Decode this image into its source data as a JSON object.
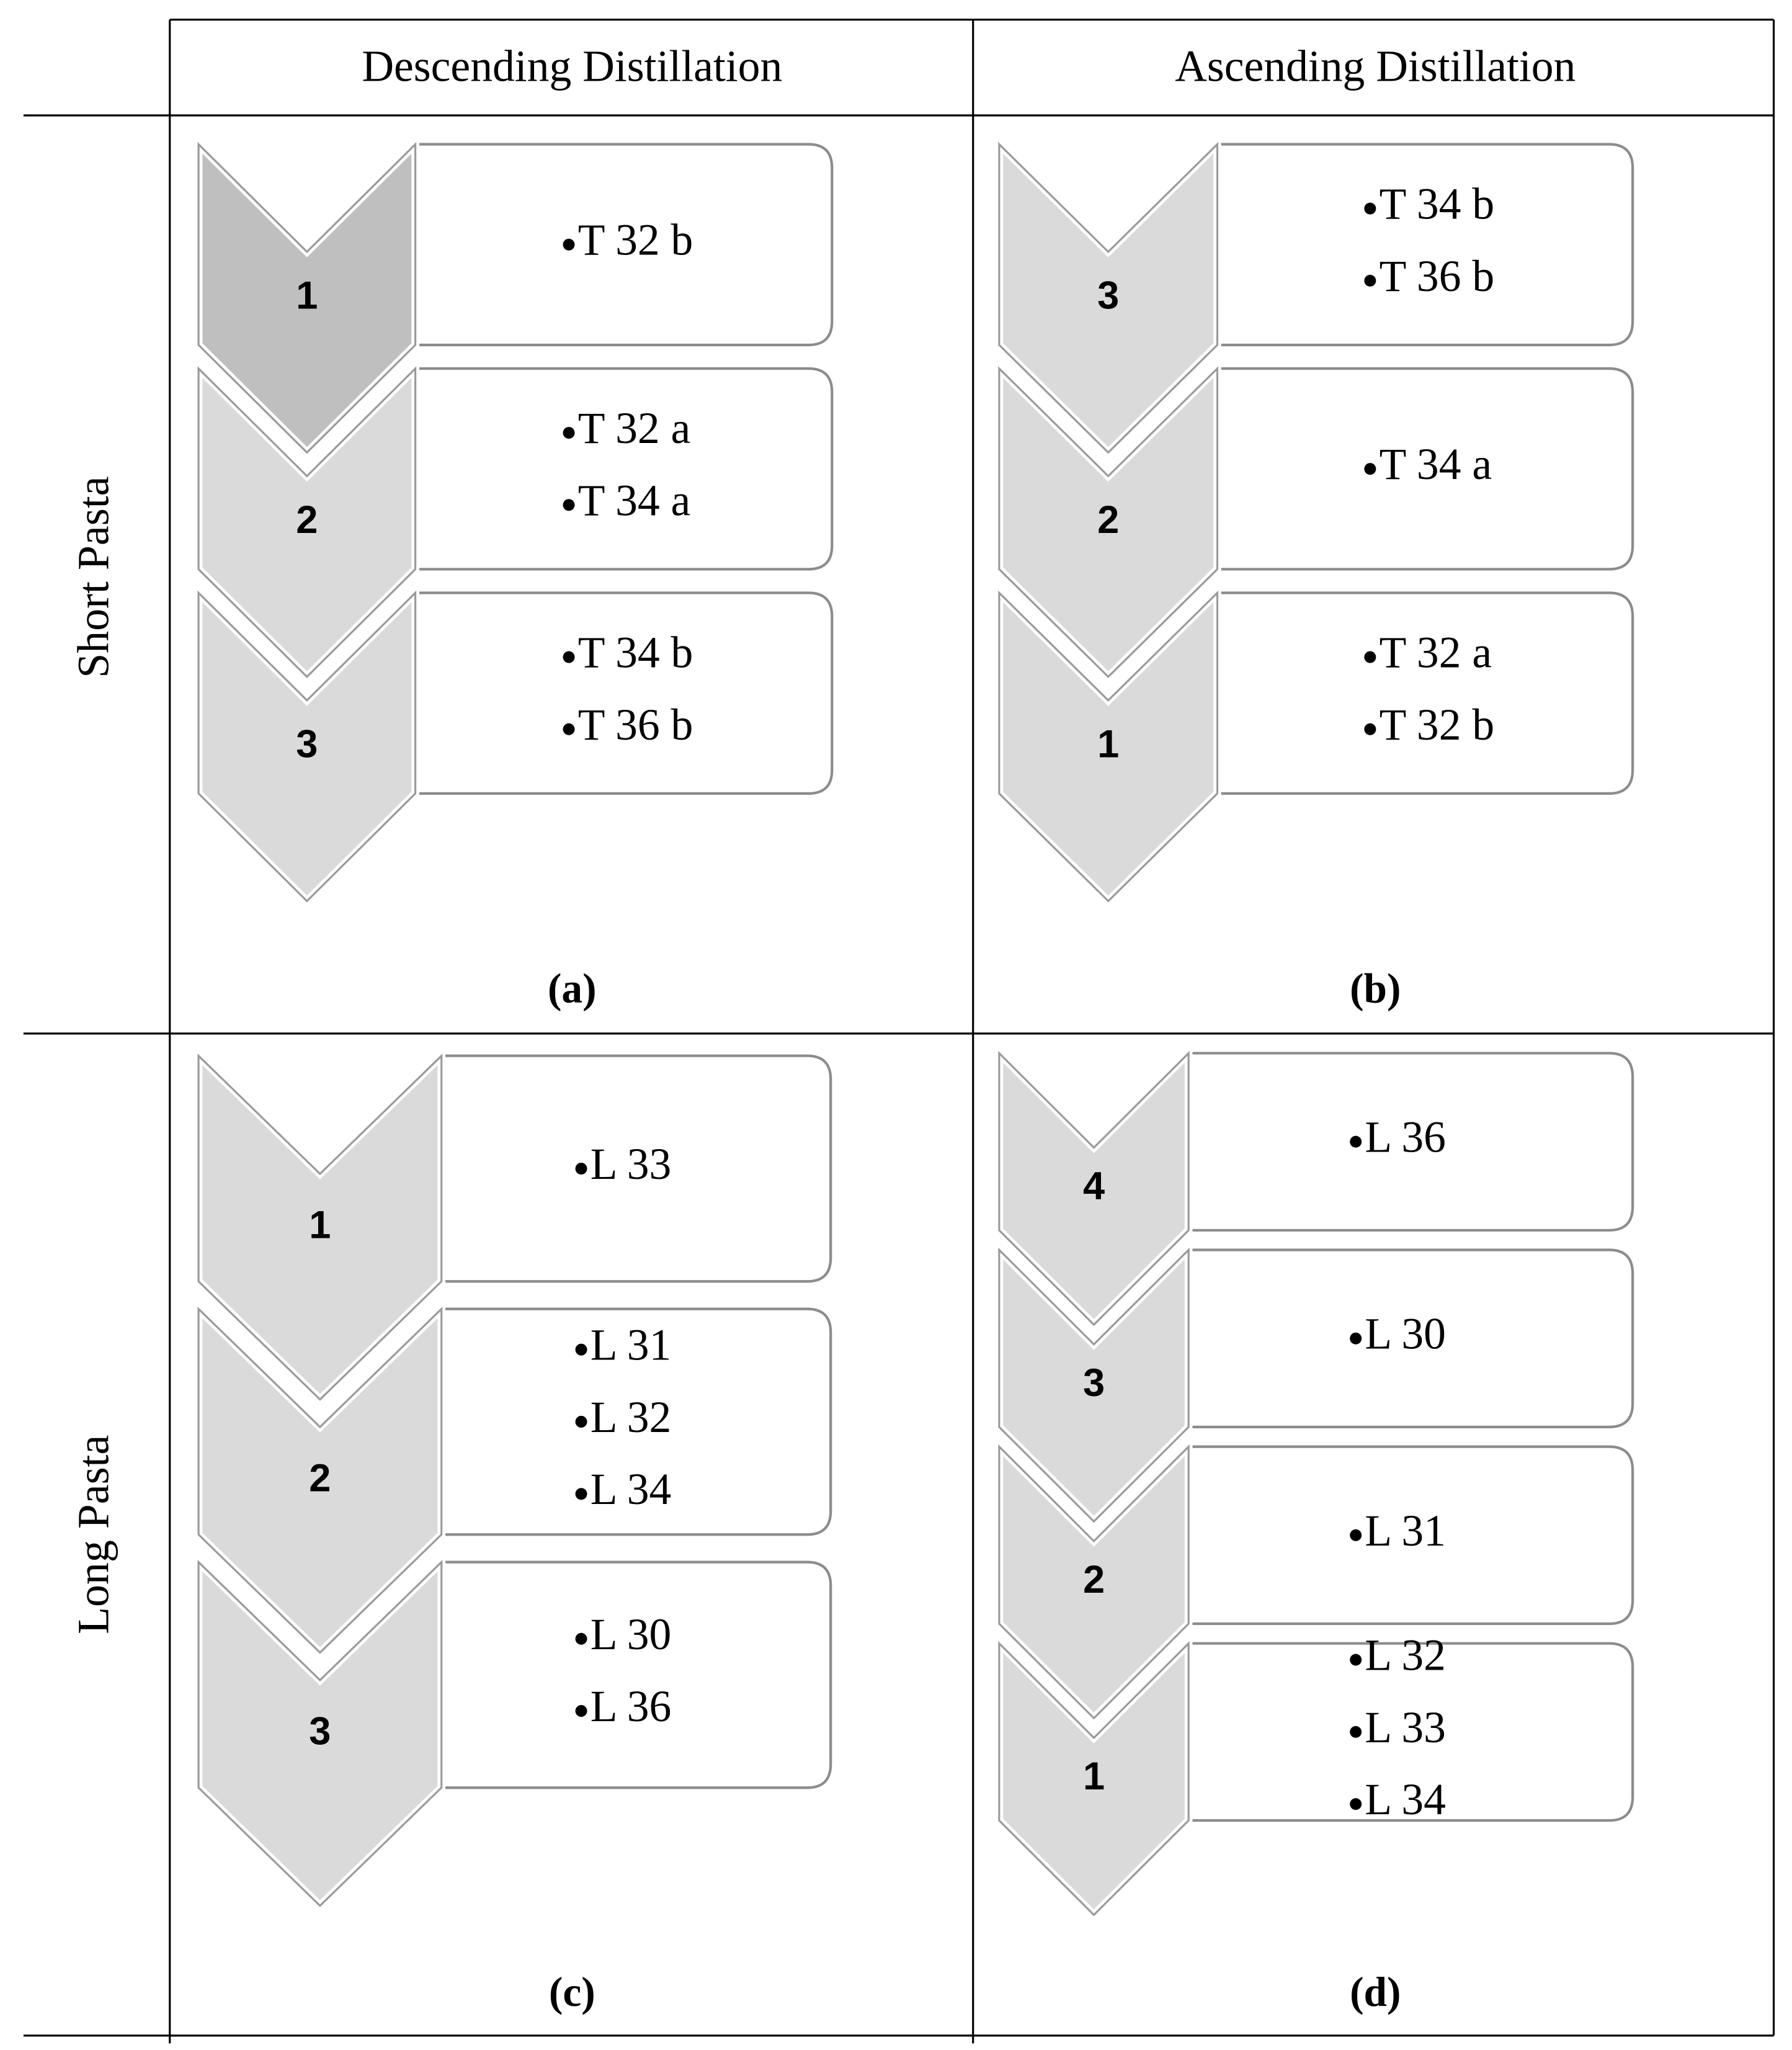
{
  "header": {
    "columns": [
      "Descending Distillation",
      "Ascending Distillation"
    ]
  },
  "rows": [
    "Short Pasta",
    "Long Pasta"
  ],
  "panels": [
    {
      "caption": "(a)",
      "steps": [
        {
          "number": "1",
          "items": [
            "T 32 b"
          ]
        },
        {
          "number": "2",
          "items": [
            "T 32 a",
            "T 34 a"
          ]
        },
        {
          "number": "3",
          "items": [
            "T 34 b",
            "T 36 b"
          ]
        }
      ]
    },
    {
      "caption": "(b)",
      "steps": [
        {
          "number": "3",
          "items": [
            "T 34 b",
            "T 36 b"
          ]
        },
        {
          "number": "2",
          "items": [
            "T 34 a"
          ]
        },
        {
          "number": "1",
          "items": [
            "T 32 a",
            "T 32 b"
          ]
        }
      ]
    },
    {
      "caption": "(c)",
      "steps": [
        {
          "number": "1",
          "items": [
            "L 33"
          ]
        },
        {
          "number": "2",
          "items": [
            "L 31",
            "L 32",
            "L 34"
          ]
        },
        {
          "number": "3",
          "items": [
            "L 30",
            "L 36"
          ]
        }
      ]
    },
    {
      "caption": "(d)",
      "steps": [
        {
          "number": "4",
          "items": [
            "L 36"
          ]
        },
        {
          "number": "3",
          "items": [
            "L 30"
          ]
        },
        {
          "number": "2",
          "items": [
            "L 31"
          ]
        },
        {
          "number": "1",
          "items": [
            "L 32",
            "L 33",
            "L 34"
          ]
        }
      ]
    }
  ]
}
